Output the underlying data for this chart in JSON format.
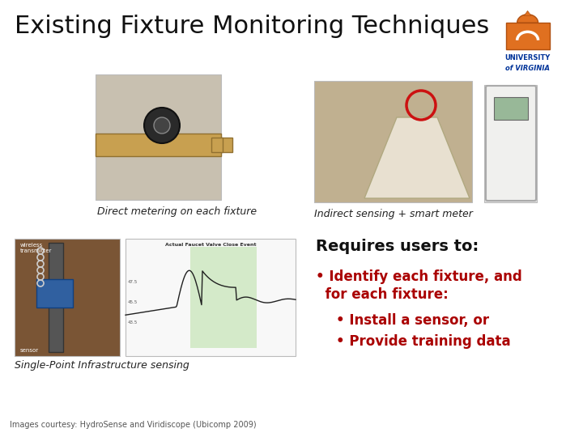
{
  "title": "Existing Fixture Monitoring Techniques",
  "title_fontsize": 22,
  "background_color": "#ffffff",
  "label1": "Direct metering on each fixture",
  "label2": "Indirect sensing + smart meter",
  "label3": "Single-Point Infrastructure sensing",
  "label4": "Images courtesy: HydroSense and Viridiscope (Ubicomp 2009)",
  "requires_title": "Requires users to:",
  "bullet1a": "• Identify each fixture, and",
  "bullet1b": "  for each fixture:",
  "bullet2": "• Install a sensor, or",
  "bullet3": "• Provide training data",
  "text_color_red": "#aa0000",
  "text_color_black": "#111111",
  "text_color_dark": "#222222",
  "text_color_gray": "#555555",
  "logo_orange": "#e07020",
  "logo_blue": "#003399"
}
